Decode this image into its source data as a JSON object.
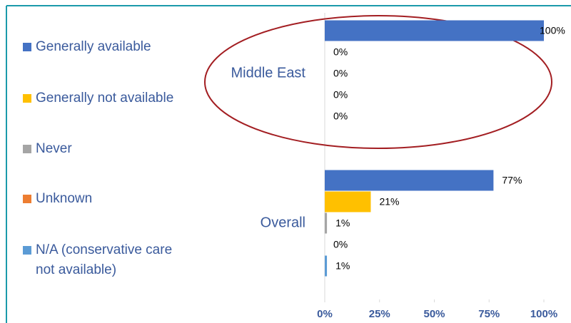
{
  "chart_data": {
    "type": "bar",
    "orientation": "horizontal",
    "categories": [
      "Middle East",
      "Overall"
    ],
    "series": [
      {
        "name": "Generally available",
        "color": "#4472c4",
        "values": [
          100,
          77
        ],
        "value_labels": [
          "100%",
          "77%"
        ]
      },
      {
        "name": "Generally not available",
        "color": "#ffc000",
        "values": [
          0,
          21
        ],
        "value_labels": [
          "0%",
          "21%"
        ]
      },
      {
        "name": "Never",
        "color": "#a5a5a5",
        "values": [
          0,
          1
        ],
        "value_labels": [
          "0%",
          "1%"
        ]
      },
      {
        "name": "Unknown",
        "color": "#ed7d31",
        "values": [
          0,
          0
        ],
        "value_labels": [
          "0%",
          "0%"
        ]
      },
      {
        "name": "N/A (conservative care not available)",
        "color": "#5b9bd5",
        "values": [
          0,
          1
        ],
        "value_labels": [
          "0%",
          "1%"
        ]
      }
    ],
    "xlim": [
      0,
      100
    ],
    "xticks": [
      {
        "value": 0,
        "label": "0%"
      },
      {
        "value": 25,
        "label": "25%"
      },
      {
        "value": 50,
        "label": "50%"
      },
      {
        "value": 75,
        "label": "75%"
      },
      {
        "value": 100,
        "label": "100%"
      }
    ],
    "legend": "left"
  }
}
